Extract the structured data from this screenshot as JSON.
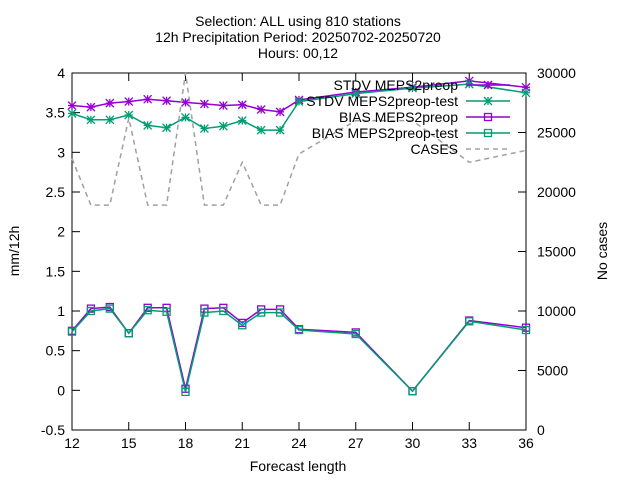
{
  "title_lines": [
    "Selection: ALL using   810 stations",
    "12h Precipitation   Period: 20250702-20250720",
    "Hours: 00,12"
  ],
  "colors": {
    "purple": "#9400d3",
    "teal": "#009e73",
    "cases": "#a0a0a0"
  },
  "chart_data": {
    "type": "line",
    "xlabel": "Forecast length",
    "ylabel": "mm/12h",
    "y2label": "No cases",
    "xlim": [
      12,
      36
    ],
    "ylim": [
      -0.5,
      4
    ],
    "y2lim": [
      0,
      30000
    ],
    "xticks": [
      "12",
      "15",
      "18",
      "21",
      "24",
      "27",
      "30",
      "33",
      "36"
    ],
    "yticks": [
      "-0.5",
      "0",
      "0.5",
      "1",
      "1.5",
      "2",
      "2.5",
      "3",
      "3.5",
      "4"
    ],
    "y2ticks": [
      "0",
      "5000",
      "10000",
      "15000",
      "20000",
      "25000",
      "30000"
    ],
    "grid": false,
    "legend_position": "top-right",
    "series": [
      {
        "name": "STDV MEPS2preop",
        "color": "#9400d3",
        "marker": "star",
        "axis": "y1",
        "x": [
          12,
          13,
          14,
          15,
          16,
          17,
          18,
          19,
          20,
          21,
          22,
          23,
          24,
          27,
          30,
          33,
          36
        ],
        "y": [
          3.59,
          3.57,
          3.62,
          3.64,
          3.67,
          3.65,
          3.63,
          3.61,
          3.59,
          3.6,
          3.54,
          3.51,
          3.66,
          3.76,
          3.82,
          3.9,
          3.82
        ]
      },
      {
        "name": "STDV MEPS2preop-test",
        "color": "#009e73",
        "marker": "star",
        "axis": "y1",
        "x": [
          12,
          13,
          14,
          15,
          16,
          17,
          18,
          19,
          20,
          21,
          22,
          23,
          24,
          27,
          30,
          33,
          36
        ],
        "y": [
          3.49,
          3.41,
          3.41,
          3.47,
          3.34,
          3.31,
          3.44,
          3.3,
          3.33,
          3.4,
          3.28,
          3.28,
          3.64,
          3.74,
          3.81,
          3.86,
          3.75
        ]
      },
      {
        "name": "BIAS MEPS2preop",
        "color": "#9400d3",
        "marker": "square",
        "axis": "y1",
        "x": [
          12,
          13,
          14,
          15,
          16,
          17,
          18,
          19,
          20,
          21,
          22,
          23,
          24,
          27,
          30,
          33,
          36
        ],
        "y": [
          0.75,
          1.03,
          1.05,
          0.72,
          1.04,
          1.04,
          0.02,
          1.03,
          1.04,
          0.85,
          1.02,
          1.02,
          0.77,
          0.73,
          -0.01,
          0.88,
          0.79
        ]
      },
      {
        "name": "BIAS MEPS2preop-test",
        "color": "#009e73",
        "marker": "square",
        "axis": "y1",
        "x": [
          12,
          13,
          14,
          15,
          16,
          17,
          18,
          19,
          20,
          21,
          22,
          23,
          24,
          27,
          30,
          33,
          36
        ],
        "y": [
          0.74,
          1.0,
          1.03,
          0.72,
          1.01,
          0.99,
          -0.02,
          0.98,
          1.0,
          0.82,
          0.98,
          0.98,
          0.76,
          0.71,
          -0.01,
          0.87,
          0.76
        ]
      },
      {
        "name": "CASES",
        "color": "#a0a0a0",
        "marker": "none",
        "dashed": true,
        "axis": "y2",
        "x": [
          12,
          13,
          14,
          15,
          16,
          17,
          18,
          19,
          20,
          21,
          22,
          23,
          24,
          27,
          30,
          33,
          36
        ],
        "y": [
          22800,
          18900,
          18900,
          26200,
          18900,
          18900,
          30000,
          18900,
          18900,
          22500,
          18900,
          18900,
          23200,
          26000,
          26000,
          22500,
          23500
        ]
      }
    ]
  }
}
